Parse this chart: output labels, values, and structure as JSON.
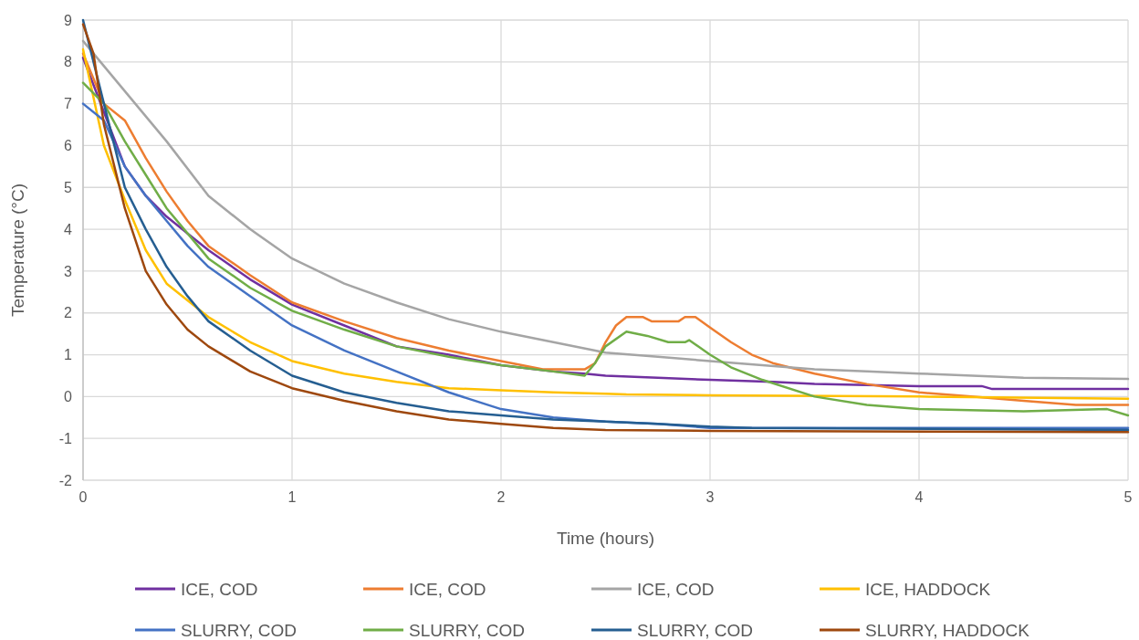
{
  "chart_data": {
    "type": "line",
    "xlabel": "Time (hours)",
    "ylabel": "Temperature (°C)",
    "xlim": [
      0,
      5
    ],
    "xticks": [
      0,
      1,
      2,
      3,
      4,
      5
    ],
    "ylim": [
      -2,
      9
    ],
    "yticks": [
      -2,
      -1,
      0,
      1,
      2,
      3,
      4,
      5,
      6,
      7,
      8,
      9
    ],
    "grid": true,
    "legend": "bottom",
    "marker": "none",
    "line_style": "solid",
    "series": [
      {
        "name": "ICE, COD",
        "color": "#7030a0",
        "x": [
          0,
          0.1,
          0.2,
          0.3,
          0.4,
          0.5,
          0.6,
          0.8,
          1,
          1.25,
          1.5,
          1.75,
          2,
          2.25,
          2.4,
          2.5,
          2.75,
          3,
          3.3,
          3.5,
          4,
          4.3,
          4.35,
          5
        ],
        "values": [
          8.1,
          6.8,
          5.5,
          4.8,
          4.3,
          3.9,
          3.5,
          2.8,
          2.2,
          1.7,
          1.2,
          1,
          0.75,
          0.6,
          0.55,
          0.5,
          0.45,
          0.4,
          0.35,
          0.3,
          0.25,
          0.25,
          0.18,
          0.18
        ]
      },
      {
        "name": "ICE, COD",
        "color": "#ed7d31",
        "x": [
          0,
          0.1,
          0.2,
          0.3,
          0.4,
          0.5,
          0.6,
          0.8,
          1,
          1.25,
          1.5,
          1.75,
          2,
          2.2,
          2.4,
          2.45,
          2.5,
          2.55,
          2.6,
          2.68,
          2.72,
          2.85,
          2.88,
          2.93,
          3,
          3.1,
          3.2,
          3.3,
          3.5,
          3.75,
          4,
          4.25,
          4.5,
          4.75,
          5
        ],
        "values": [
          8.2,
          7,
          6.6,
          5.7,
          4.9,
          4.2,
          3.6,
          2.9,
          2.25,
          1.8,
          1.4,
          1.1,
          0.85,
          0.65,
          0.65,
          0.8,
          1.3,
          1.7,
          1.9,
          1.9,
          1.8,
          1.8,
          1.9,
          1.9,
          1.65,
          1.3,
          1,
          0.8,
          0.55,
          0.3,
          0.1,
          0,
          -0.1,
          -0.2,
          -0.2
        ]
      },
      {
        "name": "ICE, COD",
        "color": "#a5a5a5",
        "x": [
          0,
          0.2,
          0.4,
          0.6,
          0.8,
          1,
          1.25,
          1.5,
          1.75,
          2,
          2.25,
          2.5,
          2.75,
          3,
          3.25,
          3.5,
          3.75,
          4,
          4.5,
          5
        ],
        "values": [
          8.5,
          7.3,
          6.1,
          4.8,
          4,
          3.3,
          2.7,
          2.25,
          1.85,
          1.55,
          1.3,
          1.05,
          0.95,
          0.85,
          0.75,
          0.65,
          0.6,
          0.55,
          0.45,
          0.42
        ]
      },
      {
        "name": "ICE, HADDOCK",
        "color": "#ffc000",
        "x": [
          0,
          0.1,
          0.2,
          0.3,
          0.4,
          0.5,
          0.6,
          0.8,
          1,
          1.25,
          1.5,
          1.75,
          2,
          2.25,
          2.5,
          2.6,
          3,
          4,
          5
        ],
        "values": [
          8.3,
          6,
          4.7,
          3.5,
          2.7,
          2.3,
          1.9,
          1.3,
          0.85,
          0.55,
          0.35,
          0.2,
          0.15,
          0.1,
          0.07,
          0.05,
          0.03,
          0,
          -0.05
        ]
      },
      {
        "name": "SLURRY, COD",
        "color": "#4472c4",
        "x": [
          0,
          0.1,
          0.2,
          0.3,
          0.4,
          0.5,
          0.6,
          0.8,
          1,
          1.25,
          1.5,
          1.75,
          2,
          2.25,
          2.5,
          2.75,
          3,
          5
        ],
        "values": [
          7,
          6.6,
          5.5,
          4.8,
          4.2,
          3.6,
          3.1,
          2.4,
          1.7,
          1.1,
          0.6,
          0.1,
          -0.3,
          -0.5,
          -0.6,
          -0.65,
          -0.75,
          -0.75
        ]
      },
      {
        "name": "SLURRY, COD",
        "color": "#70ad47",
        "x": [
          0,
          0.1,
          0.2,
          0.3,
          0.4,
          0.5,
          0.6,
          0.8,
          1,
          1.25,
          1.5,
          1.75,
          2,
          2.25,
          2.4,
          2.45,
          2.5,
          2.6,
          2.7,
          2.8,
          2.88,
          2.9,
          3,
          3.1,
          3.25,
          3.5,
          3.75,
          4,
          4.5,
          4.9,
          5
        ],
        "values": [
          7.5,
          7,
          6.1,
          5.3,
          4.5,
          3.9,
          3.3,
          2.6,
          2.05,
          1.6,
          1.2,
          0.95,
          0.75,
          0.6,
          0.5,
          0.8,
          1.2,
          1.55,
          1.45,
          1.3,
          1.3,
          1.35,
          1,
          0.7,
          0.4,
          0,
          -0.2,
          -0.3,
          -0.35,
          -0.3,
          -0.45
        ]
      },
      {
        "name": "SLURRY, COD",
        "color": "#255e91",
        "x": [
          0,
          0.1,
          0.2,
          0.3,
          0.4,
          0.5,
          0.6,
          0.8,
          1,
          1.25,
          1.5,
          1.75,
          2,
          2.25,
          2.5,
          2.75,
          3,
          3.2,
          5
        ],
        "values": [
          9,
          7,
          5,
          4,
          3.1,
          2.4,
          1.8,
          1.1,
          0.5,
          0.1,
          -0.15,
          -0.35,
          -0.45,
          -0.55,
          -0.6,
          -0.65,
          -0.72,
          -0.75,
          -0.8
        ]
      },
      {
        "name": "SLURRY, HADDOCK",
        "color": "#9e480e",
        "x": [
          0,
          0.05,
          0.1,
          0.2,
          0.3,
          0.4,
          0.5,
          0.6,
          0.8,
          1,
          1.25,
          1.5,
          1.75,
          2,
          2.25,
          2.5,
          3,
          5
        ],
        "values": [
          8.9,
          8.2,
          6.5,
          4.5,
          3,
          2.2,
          1.6,
          1.2,
          0.6,
          0.2,
          -0.1,
          -0.35,
          -0.55,
          -0.65,
          -0.75,
          -0.8,
          -0.82,
          -0.85
        ]
      }
    ]
  }
}
